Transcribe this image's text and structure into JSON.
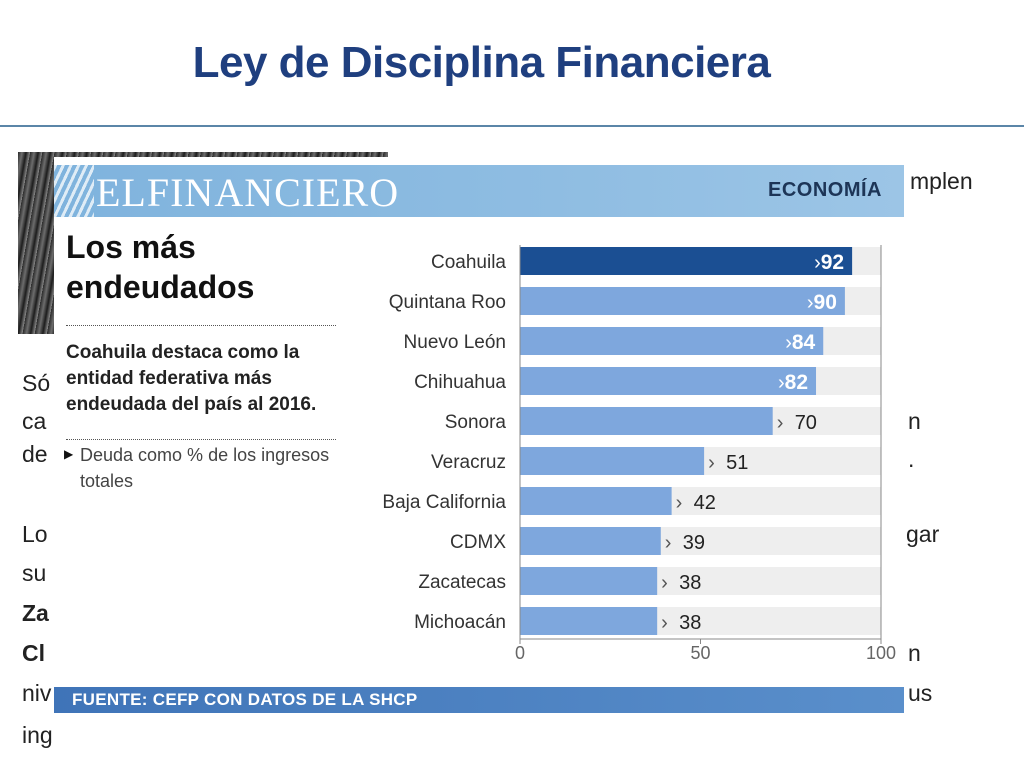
{
  "slide": {
    "title": "Ley de Disciplina Financiera",
    "background_fragments": [
      "mplen",
      "Só",
      "ca",
      "de",
      "n",
      ".",
      "Lo",
      "gar",
      "su",
      "Za",
      "Cl",
      "n",
      "niv",
      "us",
      "ing"
    ]
  },
  "article": {
    "brand": "ELFINANCIERO",
    "section": "ECONOMÍA",
    "headline_line1": "Los más",
    "headline_line2": "endeudados",
    "description": "Coahuila destaca como la entidad federativa más endeudada del país al 2016.",
    "note": "Deuda como %  de los ingresos totales",
    "source": "FUENTE: CEFP CON DATOS DE LA SHCP"
  },
  "colors": {
    "highlight_bar": "#1b4f93",
    "bar": "#7ea7dd",
    "track": "#eeeeee",
    "masthead": "#8fbde2",
    "footer": "#3f74b8",
    "title": "#1f3f7f"
  },
  "chart_data": {
    "type": "bar",
    "orientation": "horizontal",
    "categories": [
      "Coahuila",
      "Quintana Roo",
      "Nuevo León",
      "Chihuahua",
      "Sonora",
      "Veracruz",
      "Baja California",
      "CDMX",
      "Zacatecas",
      "Michoacán"
    ],
    "values": [
      92,
      90,
      84,
      82,
      70,
      51,
      42,
      39,
      38,
      38
    ],
    "highlighted": [
      "Coahuila"
    ],
    "xlim": [
      0,
      100
    ],
    "xticks": [
      0,
      50,
      100
    ],
    "xlabel": "",
    "ylabel": ""
  }
}
